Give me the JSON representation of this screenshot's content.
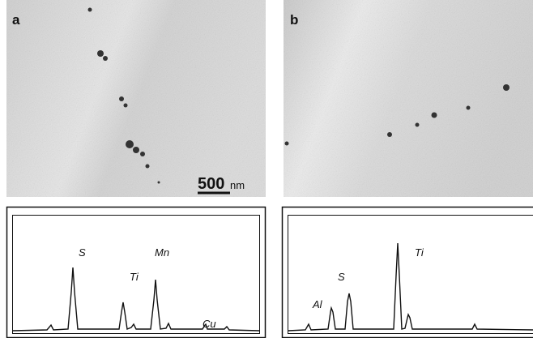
{
  "panels": [
    {
      "label": "a",
      "scale_bar": {
        "value": "500",
        "unit": "nm"
      },
      "peaks": [
        "S",
        "Ti",
        "Mn",
        "Cu"
      ]
    },
    {
      "label": "b",
      "peaks": [
        "Al",
        "S",
        "Ti"
      ]
    }
  ]
}
